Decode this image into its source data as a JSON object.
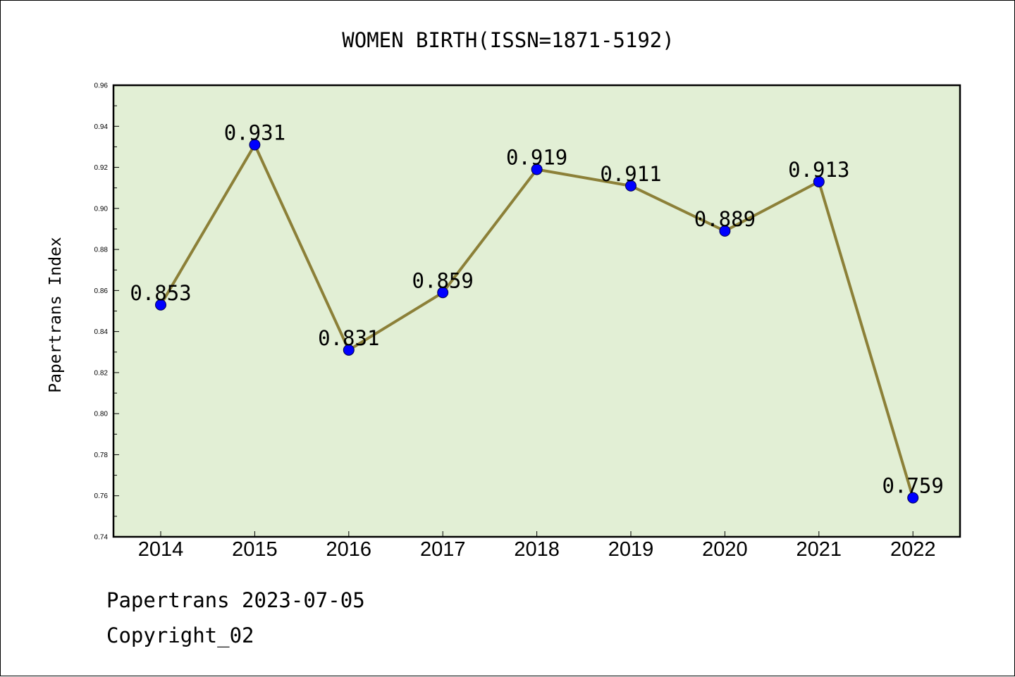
{
  "chart_data": {
    "type": "line",
    "title": "WOMEN BIRTH(ISSN=1871-5192)",
    "xlabel": "",
    "ylabel": "Papertrans Index",
    "categories": [
      "2014",
      "2015",
      "2016",
      "2017",
      "2018",
      "2019",
      "2020",
      "2021",
      "2022"
    ],
    "series": [
      {
        "values": [
          0.853,
          0.931,
          0.831,
          0.859,
          0.919,
          0.911,
          0.889,
          0.913,
          0.759
        ],
        "data_labels": [
          "0.853",
          "0.931",
          "0.831",
          "0.859",
          "0.919",
          "0.911",
          "0.889",
          "0.913",
          "0.759"
        ]
      }
    ],
    "ylim": [
      0.74,
      0.96
    ],
    "yticks": [
      "0.74",
      "0.76",
      "0.78",
      "0.80",
      "0.82",
      "0.84",
      "0.86",
      "0.88",
      "0.90",
      "0.92",
      "0.94",
      "0.96"
    ],
    "grid": false,
    "legend": "none",
    "colors": {
      "plot_background": "#e2efd5",
      "line": "#8c8038",
      "marker": "#0000ff",
      "axis": "#000000"
    }
  },
  "footer": {
    "source": "Papertrans 2023-07-05",
    "copyright": "Copyright_02"
  }
}
